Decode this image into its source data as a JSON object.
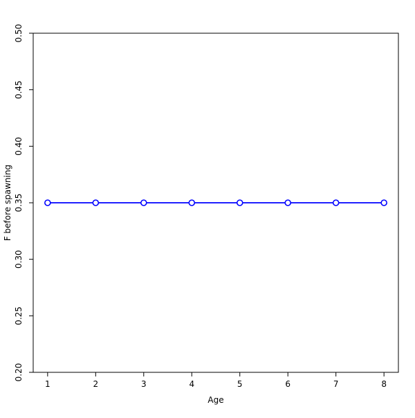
{
  "chart_data": {
    "type": "line",
    "title": "",
    "xlabel": "Age",
    "ylabel": "F before spawning",
    "x": [
      1,
      2,
      3,
      4,
      5,
      6,
      7,
      8
    ],
    "series": [
      {
        "name": "F before spawning",
        "values": [
          0.35,
          0.35,
          0.35,
          0.35,
          0.35,
          0.35,
          0.35,
          0.35
        ]
      }
    ],
    "xlim": [
      0.7,
      8.3
    ],
    "ylim": [
      0.2,
      0.5
    ],
    "x_ticks": [
      1,
      2,
      3,
      4,
      5,
      6,
      7,
      8
    ],
    "x_tick_labels": [
      "1",
      "2",
      "3",
      "4",
      "5",
      "6",
      "7",
      "8"
    ],
    "y_ticks": [
      0.2,
      0.25,
      0.3,
      0.35,
      0.4,
      0.45,
      0.5
    ],
    "y_tick_labels": [
      "0.20",
      "0.25",
      "0.30",
      "0.35",
      "0.40",
      "0.45",
      "0.50"
    ],
    "grid": false,
    "legend": "none",
    "marker": "open-circle",
    "colors": {
      "line": "#0000ff",
      "marker_fill": "#ffffff",
      "axis": "#000000",
      "text": "#000000",
      "background": "#ffffff"
    }
  }
}
